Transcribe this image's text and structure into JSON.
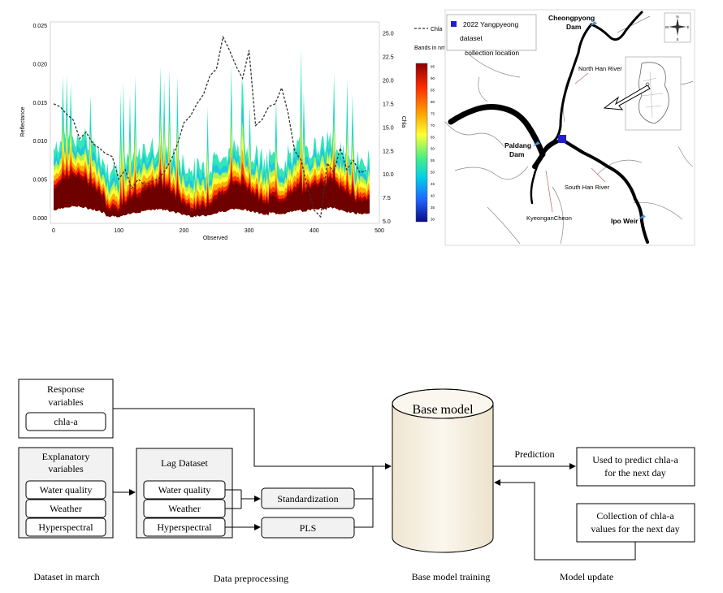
{
  "chart": {
    "xlabel": "Observed",
    "ylabel_left": "Reflectance",
    "ylabel_right": "Chla",
    "legend_label": "Chla",
    "colorbar_title": "Bands in nm",
    "colorbar_ticks": [
      "95",
      "90",
      "85",
      "80",
      "75",
      "70",
      "65",
      "60",
      "55",
      "50",
      "45",
      "40",
      "35",
      "30"
    ],
    "colors": {
      "chla_line": "#333333",
      "high": "#8b0000",
      "low": "#1e90ff"
    }
  },
  "chart_data": {
    "type": "area",
    "xlabel": "Observed",
    "ylabel": "Reflectance",
    "y2label": "Chla",
    "xlim": [
      -5,
      500
    ],
    "ylim": [
      -0.0007,
      0.0255
    ],
    "y2lim": [
      4.8,
      26.2
    ],
    "x_ticks": [
      "0",
      "100",
      "200",
      "300",
      "400",
      "500"
    ],
    "y_ticks": [
      "0.000",
      "0.005",
      "0.010",
      "0.015",
      "0.020",
      "0.025"
    ],
    "y2_ticks": [
      "5.0",
      "7.5",
      "10.0",
      "12.5",
      "15.0",
      "17.5",
      "20.0",
      "22.5",
      "25.0"
    ],
    "series": [
      {
        "name": "Chla",
        "x": [
          0,
          10,
          20,
          30,
          40,
          50,
          60,
          70,
          80,
          90,
          100,
          110,
          120,
          130,
          140,
          150,
          160,
          170,
          180,
          190,
          200,
          210,
          220,
          230,
          240,
          250,
          260,
          270,
          280,
          290,
          300,
          310,
          320,
          330,
          340,
          350,
          360,
          370,
          380,
          390,
          400,
          410,
          420,
          430,
          440,
          450,
          460,
          470,
          480
        ],
        "values": [
          17.5,
          17.2,
          16.4,
          15.8,
          13.8,
          14.5,
          13.3,
          12.8,
          12.2,
          11.9,
          9.5,
          10.5,
          8.5,
          9.5,
          8.8,
          9.2,
          9.5,
          10.3,
          11.5,
          13.2,
          15.5,
          16.2,
          17.5,
          18.5,
          20.5,
          21.2,
          24.6,
          23.2,
          21.5,
          20.2,
          23.2,
          15.2,
          15.8,
          17.2,
          17.5,
          19.2,
          16.5,
          12.5,
          11.5,
          8.5,
          6.2,
          5.5,
          11.2,
          10.2,
          12.8,
          10.5,
          11.5,
          10.2,
          10.4
        ]
      }
    ]
  },
  "map": {
    "legend_line1": "2022 Yangpyeong",
    "legend_line2": "dataset",
    "legend_line3": "collection location",
    "labels": {
      "cheongpyong": "Cheongpyong",
      "cheongpyong_dam": "Dam",
      "paldang": "Paldang",
      "paldang_dam": "Dam",
      "north_han": "North Han River",
      "south_han": "South Han River",
      "kyeongan": "KyeonganCheon",
      "ipo": "Ipo Weir"
    },
    "compass": {
      "n": "N",
      "s": "S",
      "e": "E",
      "w": "W"
    },
    "marker_color": "#1f1fcc"
  },
  "diagram": {
    "response_title_1": "Response",
    "response_title_2": "variables",
    "response_item": "chla-a",
    "explanatory_title_1": "Explanatory",
    "explanatory_title_2": "variables",
    "explanatory_items": [
      "Water quality",
      "Weather",
      "Hyperspectral"
    ],
    "lag_title": "Lag Dataset",
    "lag_items": [
      "Water quality",
      "Weather",
      "Hyperspectral"
    ],
    "standardization": "Standardization",
    "pls": "PLS",
    "base_model": "Base model",
    "prediction": "Prediction",
    "predict_box_1": "Used to predict chla-a",
    "predict_box_2": "for the next day",
    "collect_box_1": "Collection of chla-a",
    "collect_box_2": "values for the next day",
    "captions": [
      "Dataset in march",
      "Data preprocessing",
      "Base model training",
      "Model update"
    ]
  }
}
